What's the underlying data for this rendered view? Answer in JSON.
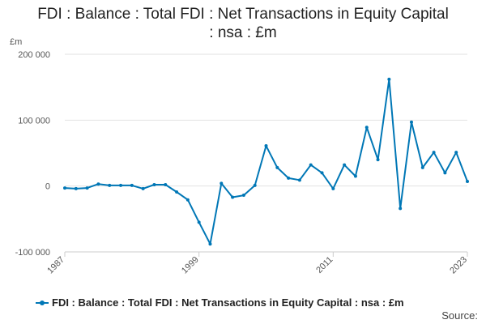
{
  "chart_data": {
    "type": "line",
    "title_line1": "FDI : Balance : Total FDI : Net Transactions in Equity Capital",
    "title_line2": ": nsa : £m",
    "ylabel": "£m",
    "ylim": [
      -100000,
      200000
    ],
    "yticks": [
      {
        "value": 200000,
        "label": "200 000"
      },
      {
        "value": 100000,
        "label": "100 000"
      },
      {
        "value": 0,
        "label": "0"
      },
      {
        "value": -100000,
        "label": "-100 000"
      }
    ],
    "xlim": [
      1987,
      2023
    ],
    "xticks": [
      {
        "value": 1987,
        "label": "1987"
      },
      {
        "value": 1999,
        "label": "1999"
      },
      {
        "value": 2011,
        "label": "2011"
      },
      {
        "value": 2023,
        "label": "2023"
      }
    ],
    "series": [
      {
        "name": "FDI : Balance : Total FDI : Net Transactions in Equity Capital : nsa : £m",
        "color": "#0077b6",
        "x": [
          1987,
          1988,
          1989,
          1990,
          1991,
          1992,
          1993,
          1994,
          1995,
          1996,
          1997,
          1998,
          1999,
          2000,
          2001,
          2002,
          2003,
          2004,
          2005,
          2006,
          2007,
          2008,
          2009,
          2010,
          2011,
          2012,
          2013,
          2014,
          2015,
          2016,
          2017,
          2018,
          2019,
          2020,
          2021,
          2022,
          2023
        ],
        "values": [
          -3000,
          -4000,
          -3000,
          3000,
          1000,
          1000,
          1000,
          -4000,
          2000,
          2000,
          -9000,
          -21000,
          -55000,
          -88000,
          4000,
          -17000,
          -14000,
          1000,
          61000,
          28000,
          12000,
          9000,
          32000,
          20000,
          -4000,
          32000,
          15000,
          89000,
          40000,
          162000,
          -34000,
          97000,
          28000,
          51000,
          20000,
          51000,
          7000
        ]
      }
    ]
  },
  "source_label": "Source:"
}
